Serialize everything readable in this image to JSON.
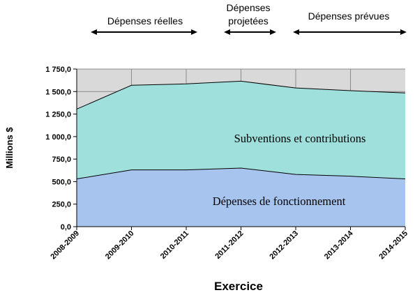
{
  "chart_data": {
    "type": "area",
    "stacked": true,
    "xlabel": "Exercice",
    "ylabel": "Millions $",
    "ylim": [
      0,
      1750
    ],
    "y_ticks": [
      "0,0",
      "250,0",
      "500,0",
      "750,0",
      "1 000,0",
      "1 250,0",
      "1 500,0",
      "1 750,0"
    ],
    "y_tick_values": [
      0,
      250,
      500,
      750,
      1000,
      1250,
      1500,
      1750
    ],
    "categories": [
      "2008-2009",
      "2009-2010",
      "2010-2011",
      "2011-2012",
      "2012-2013",
      "2013-2014",
      "2014-2015"
    ],
    "series": [
      {
        "name": "Dépenses de fonctionnement",
        "values": [
          530,
          630,
          630,
          650,
          580,
          560,
          530
        ]
      },
      {
        "name": "Subventions et contributions",
        "values": [
          775,
          940,
          955,
          965,
          960,
          950,
          955
        ]
      }
    ],
    "grid": true,
    "colors": {
      "plot_bg": "#d9d9d9",
      "gridline": "#8c8c8c",
      "fonctionnement": "#a7c4ef",
      "subventions": "#9fe0dc",
      "outline": "#000000"
    },
    "periods": [
      {
        "label": "Dépenses réelles",
        "from": 0,
        "to": 2
      },
      {
        "label": "Dépenses projetées",
        "from": 3,
        "to": 3
      },
      {
        "label": "Dépenses prévues",
        "from": 4,
        "to": 6
      }
    ]
  }
}
